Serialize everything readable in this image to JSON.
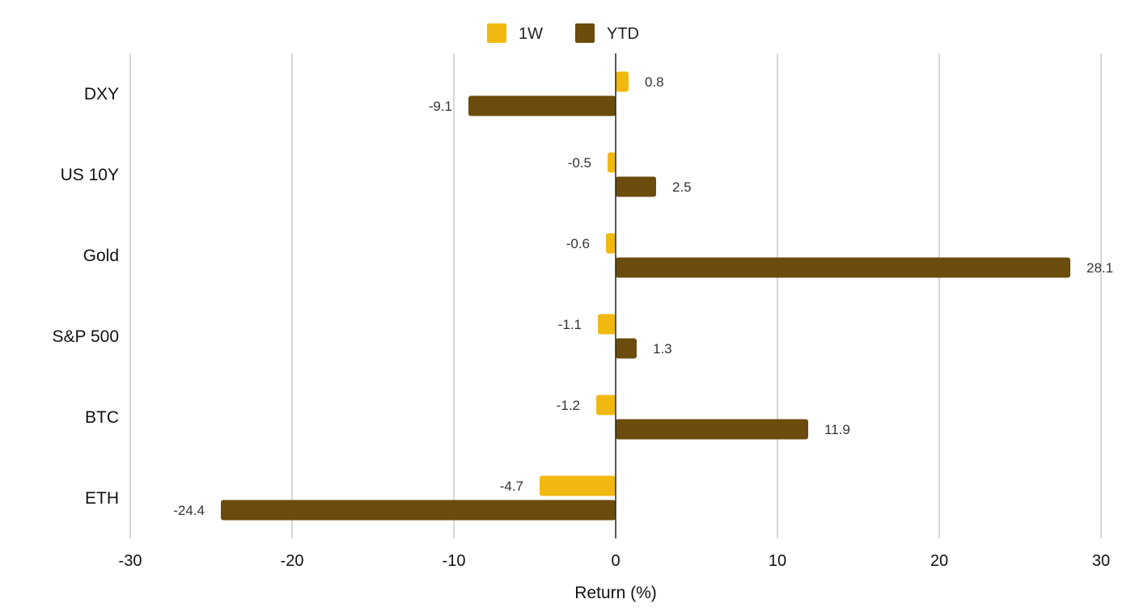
{
  "chart_data": {
    "type": "bar",
    "orientation": "horizontal",
    "categories": [
      "DXY",
      "US 10Y",
      "Gold",
      "S&P 500",
      "BTC",
      "ETH"
    ],
    "series": [
      {
        "name": "1W",
        "color": "#F1B90F",
        "values": [
          0.8,
          -0.5,
          -0.6,
          -1.1,
          -1.2,
          -4.7
        ]
      },
      {
        "name": "YTD",
        "color": "#6B4C0C",
        "values": [
          -9.1,
          2.5,
          28.1,
          1.3,
          11.9,
          -24.4
        ]
      }
    ],
    "data_labels": [
      [
        "0.8",
        "-0.5",
        "-0.6",
        "-1.1",
        "-1.2",
        "-4.7"
      ],
      [
        "-9.1",
        "2.5",
        "28.1",
        "1.3",
        "11.9",
        "-24.4"
      ]
    ],
    "xlabel": "Return (%)",
    "ylabel": "",
    "xlim": [
      -30,
      30
    ],
    "xticks": [
      -30,
      -20,
      -10,
      0,
      10,
      20,
      30
    ],
    "xtick_labels": [
      "-30",
      "-20",
      "-10",
      "0",
      "10",
      "20",
      "30"
    ],
    "grid": true,
    "legend_position": "top-center"
  }
}
